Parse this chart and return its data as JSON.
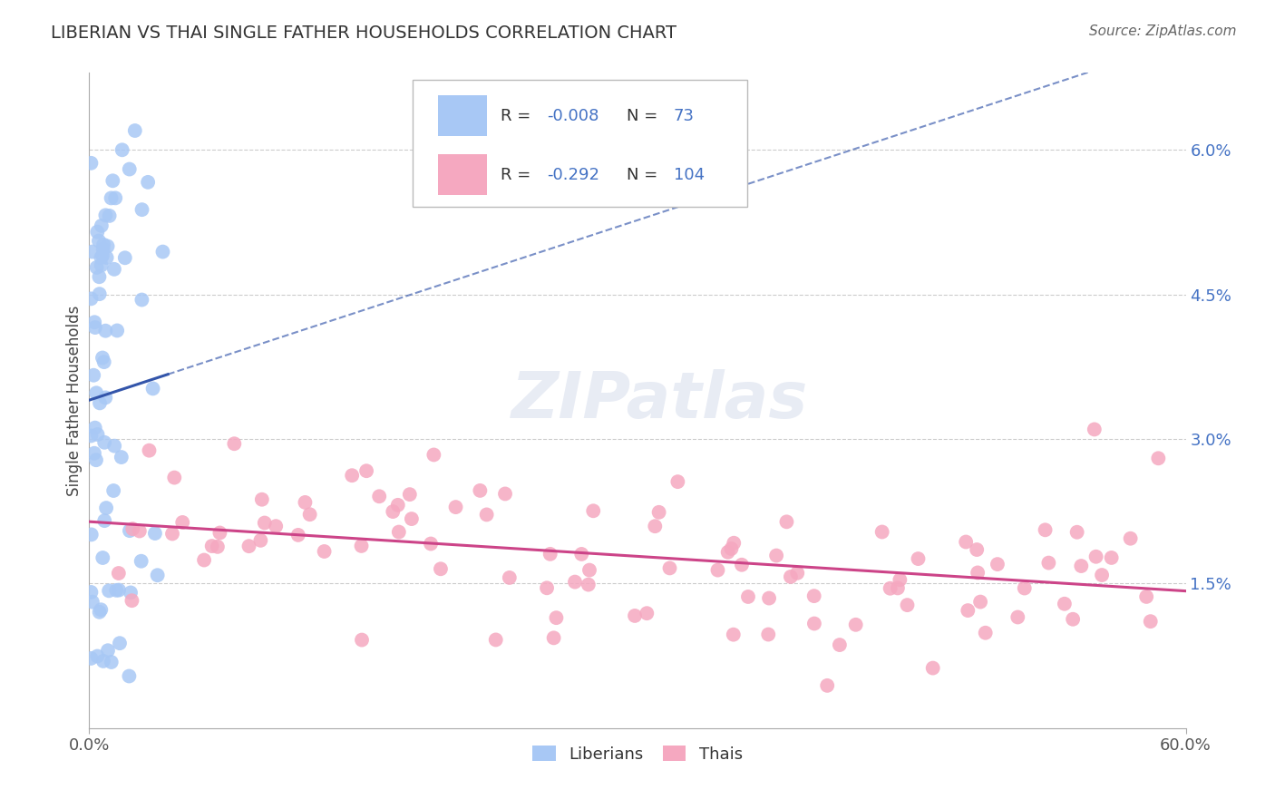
{
  "title": "LIBERIAN VS THAI SINGLE FATHER HOUSEHOLDS CORRELATION CHART",
  "source": "Source: ZipAtlas.com",
  "ylabel": "Single Father Households",
  "xlim": [
    0.0,
    0.6
  ],
  "ylim": [
    0.0,
    0.068
  ],
  "blue_color": "#a8c8f5",
  "blue_line_color": "#3355aa",
  "pink_color": "#f5a8c0",
  "pink_line_color": "#cc4488",
  "watermark": "ZIPatlas",
  "grid_color": "#cccccc",
  "right_tick_color": "#4472c4",
  "title_color": "#333333",
  "source_color": "#666666"
}
